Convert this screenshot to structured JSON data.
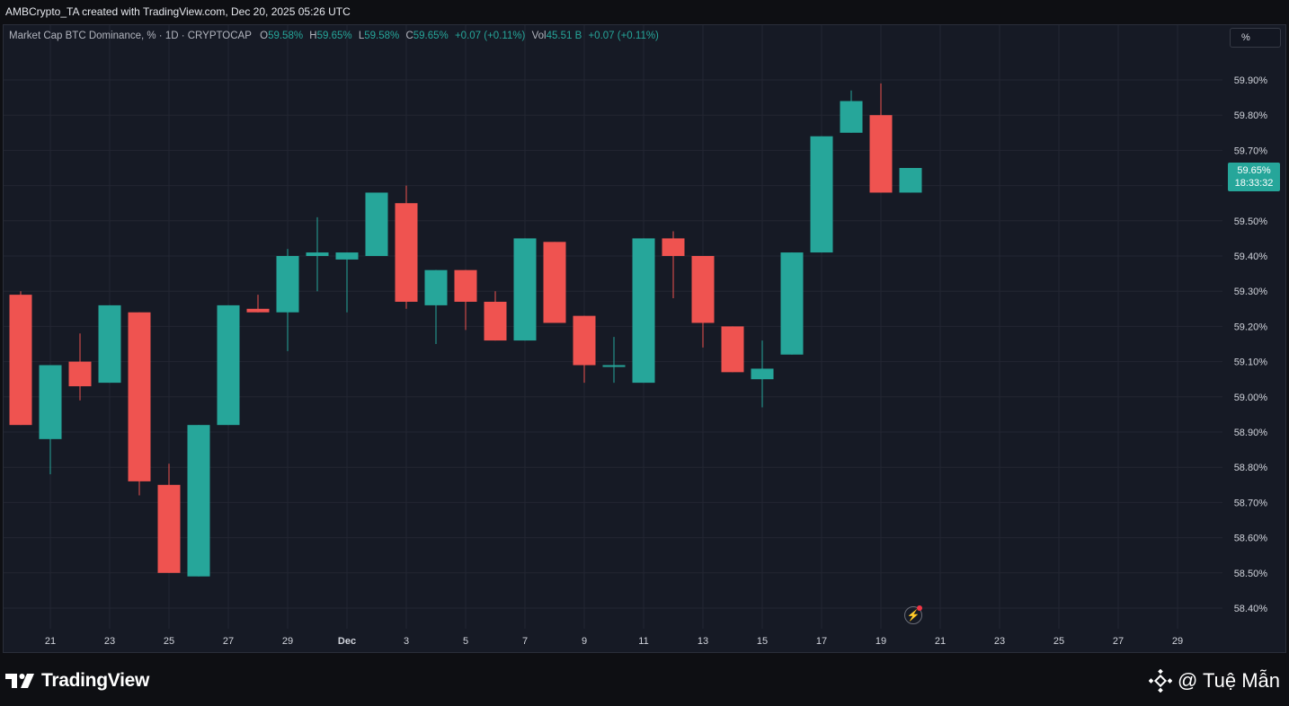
{
  "caption": "AMBCrypto_TA created with TradingView.com, Dec 20, 2025 05:26 UTC",
  "legend": {
    "symbol": "Market Cap BTC Dominance, % · 1D · CRYPTOCAP",
    "o_label": "O",
    "o_value": "59.58%",
    "h_label": "H",
    "h_value": "59.65%",
    "l_label": "L",
    "l_value": "59.58%",
    "c_label": "C",
    "c_value": "59.65%",
    "change": "+0.07 (+0.11%)",
    "vol_label": "Vol",
    "vol_value": "45.51 B",
    "vol_change": "+0.07 (+0.11%)"
  },
  "scale_button": "%",
  "price_tag": {
    "price": "59.65%",
    "countdown": "18:33:32"
  },
  "footer": {
    "logo_text": "TradingView",
    "watermark": "@ Tuệ Mẫn"
  },
  "colors": {
    "up": "#26a69a",
    "down": "#ef5350",
    "background": "#161a25",
    "grid": "#232632"
  },
  "chart_data": {
    "type": "candlestick",
    "ylim": [
      58.34,
      59.98
    ],
    "y_ticks": [
      58.4,
      58.5,
      58.6,
      58.7,
      58.8,
      58.9,
      59.0,
      59.1,
      59.2,
      59.3,
      59.4,
      59.5,
      59.6,
      59.7,
      59.8,
      59.9
    ],
    "y_tick_labels": [
      "58.40%",
      "58.50%",
      "58.60%",
      "58.70%",
      "58.80%",
      "58.90%",
      "59.00%",
      "59.10%",
      "59.20%",
      "59.30%",
      "59.40%",
      "59.50%",
      "59.60%",
      "59.70%",
      "59.80%",
      "59.90%"
    ],
    "x_tick_labels": [
      "21",
      "23",
      "25",
      "27",
      "29",
      "Dec",
      "3",
      "5",
      "7",
      "9",
      "11",
      "13",
      "15",
      "17",
      "19",
      "21",
      "23",
      "25",
      "27",
      "29"
    ],
    "x_tick_dates": [
      "Nov 21",
      "Nov 23",
      "Nov 25",
      "Nov 27",
      "Nov 29",
      "Dec 1",
      "Dec 3",
      "Dec 5",
      "Dec 7",
      "Dec 9",
      "Dec 11",
      "Dec 13",
      "Dec 15",
      "Dec 17",
      "Dec 19",
      "Dec 21",
      "Dec 23",
      "Dec 25",
      "Dec 27",
      "Dec 29"
    ],
    "candles": [
      {
        "date": "Nov 20",
        "open": 59.29,
        "high": 59.3,
        "low": 58.92,
        "close": 58.92
      },
      {
        "date": "Nov 21",
        "open": 58.88,
        "high": 59.09,
        "low": 58.78,
        "close": 59.09
      },
      {
        "date": "Nov 22",
        "open": 59.1,
        "high": 59.18,
        "low": 58.99,
        "close": 59.03
      },
      {
        "date": "Nov 23",
        "open": 59.04,
        "high": 59.26,
        "low": 59.04,
        "close": 59.26
      },
      {
        "date": "Nov 24",
        "open": 59.24,
        "high": 59.24,
        "low": 58.72,
        "close": 58.76
      },
      {
        "date": "Nov 25",
        "open": 58.75,
        "high": 58.81,
        "low": 58.5,
        "close": 58.5
      },
      {
        "date": "Nov 26",
        "open": 58.49,
        "high": 58.92,
        "low": 58.49,
        "close": 58.92
      },
      {
        "date": "Nov 27",
        "open": 58.92,
        "high": 59.26,
        "low": 58.92,
        "close": 59.26
      },
      {
        "date": "Nov 28",
        "open": 59.25,
        "high": 59.29,
        "low": 59.24,
        "close": 59.24
      },
      {
        "date": "Nov 29",
        "open": 59.24,
        "high": 59.42,
        "low": 59.13,
        "close": 59.4
      },
      {
        "date": "Nov 30",
        "open": 59.4,
        "high": 59.51,
        "low": 59.3,
        "close": 59.41
      },
      {
        "date": "Dec 1",
        "open": 59.39,
        "high": 59.41,
        "low": 59.24,
        "close": 59.41
      },
      {
        "date": "Dec 2",
        "open": 59.4,
        "high": 59.58,
        "low": 59.4,
        "close": 59.58
      },
      {
        "date": "Dec 3",
        "open": 59.55,
        "high": 59.6,
        "low": 59.25,
        "close": 59.27
      },
      {
        "date": "Dec 4",
        "open": 59.26,
        "high": 59.36,
        "low": 59.15,
        "close": 59.36
      },
      {
        "date": "Dec 5",
        "open": 59.36,
        "high": 59.36,
        "low": 59.19,
        "close": 59.27
      },
      {
        "date": "Dec 6",
        "open": 59.27,
        "high": 59.3,
        "low": 59.16,
        "close": 59.16
      },
      {
        "date": "Dec 7",
        "open": 59.16,
        "high": 59.45,
        "low": 59.16,
        "close": 59.45
      },
      {
        "date": "Dec 8",
        "open": 59.44,
        "high": 59.44,
        "low": 59.21,
        "close": 59.21
      },
      {
        "date": "Dec 9",
        "open": 59.23,
        "high": 59.23,
        "low": 59.04,
        "close": 59.09
      },
      {
        "date": "Dec 10",
        "open": 59.09,
        "high": 59.17,
        "low": 59.04,
        "close": 59.09
      },
      {
        "date": "Dec 11",
        "open": 59.04,
        "high": 59.45,
        "low": 59.04,
        "close": 59.45
      },
      {
        "date": "Dec 12",
        "open": 59.45,
        "high": 59.47,
        "low": 59.28,
        "close": 59.4
      },
      {
        "date": "Dec 13",
        "open": 59.4,
        "high": 59.4,
        "low": 59.14,
        "close": 59.21
      },
      {
        "date": "Dec 14",
        "open": 59.2,
        "high": 59.2,
        "low": 59.07,
        "close": 59.07
      },
      {
        "date": "Dec 15",
        "open": 59.05,
        "high": 59.16,
        "low": 58.97,
        "close": 59.08
      },
      {
        "date": "Dec 16",
        "open": 59.12,
        "high": 59.41,
        "low": 59.12,
        "close": 59.41
      },
      {
        "date": "Dec 17",
        "open": 59.41,
        "high": 59.74,
        "low": 59.41,
        "close": 59.74
      },
      {
        "date": "Dec 18",
        "open": 59.75,
        "high": 59.87,
        "low": 59.75,
        "close": 59.84
      },
      {
        "date": "Dec 19",
        "open": 59.8,
        "high": 59.89,
        "low": 59.58,
        "close": 59.58
      },
      {
        "date": "Dec 20",
        "open": 59.58,
        "high": 59.65,
        "low": 59.58,
        "close": 59.65
      }
    ]
  }
}
